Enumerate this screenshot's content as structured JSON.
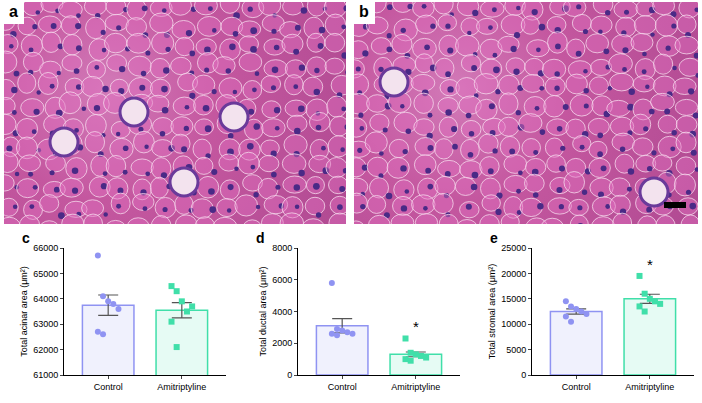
{
  "images": [
    {
      "label": "a"
    },
    {
      "label": "b"
    }
  ],
  "chart_data": [
    {
      "type": "bar",
      "panel_label": "c",
      "y_label": "Total acinar area (μm²)",
      "categories": [
        "Control",
        "Amitriptyline"
      ],
      "values": [
        63750,
        63550
      ],
      "errors": [
        400,
        300
      ],
      "colors": [
        "#8f93f2",
        "#40dfa9"
      ],
      "points": [
        {
          "category": "Control",
          "marker": "circle",
          "values": [
            65700,
            64100,
            63900,
            63800,
            63600,
            62700,
            62600
          ]
        },
        {
          "category": "Amitriptyline",
          "marker": "square",
          "values": [
            64500,
            64300,
            63900,
            63500,
            63700,
            63100,
            62100
          ]
        }
      ],
      "ylim": [
        61000,
        66000
      ],
      "yticks": [
        61000,
        62000,
        63000,
        64000,
        65000,
        66000
      ],
      "annotations": []
    },
    {
      "type": "bar",
      "panel_label": "d",
      "y_label": "Total ductal area (μm²)",
      "categories": [
        "Control",
        "Amitriptyline"
      ],
      "values": [
        3100,
        1300
      ],
      "errors": [
        450,
        150
      ],
      "colors": [
        "#8f93f2",
        "#40dfa9"
      ],
      "points": [
        {
          "category": "Control",
          "marker": "circle",
          "values": [
            5800,
            2900,
            2800,
            2700,
            2600,
            2600,
            2500
          ]
        },
        {
          "category": "Amitriptyline",
          "marker": "square",
          "values": [
            2300,
            1400,
            1300,
            1200,
            1100,
            1000,
            900
          ]
        }
      ],
      "ylim": [
        0,
        8000
      ],
      "yticks": [
        0,
        2000,
        4000,
        6000,
        8000
      ],
      "annotations": [
        {
          "text": "*",
          "category": "Amitriptyline"
        }
      ]
    },
    {
      "type": "bar",
      "panel_label": "e",
      "y_label": "Total stromal area (μm²)",
      "categories": [
        "Control",
        "Amitriptyline"
      ],
      "values": [
        12500,
        15000
      ],
      "errors": [
        500,
        900
      ],
      "colors": [
        "#8f93f2",
        "#40dfa9"
      ],
      "points": [
        {
          "category": "Control",
          "marker": "circle",
          "values": [
            14500,
            13500,
            13000,
            12500,
            12000,
            11500,
            10500
          ]
        },
        {
          "category": "Amitriptyline",
          "marker": "square",
          "values": [
            19500,
            16000,
            15000,
            14500,
            14000,
            13500,
            12500
          ]
        }
      ],
      "ylim": [
        0,
        25000
      ],
      "yticks": [
        0,
        5000,
        10000,
        15000,
        20000,
        25000
      ],
      "annotations": [
        {
          "text": "*",
          "category": "Amitriptyline"
        }
      ]
    }
  ]
}
